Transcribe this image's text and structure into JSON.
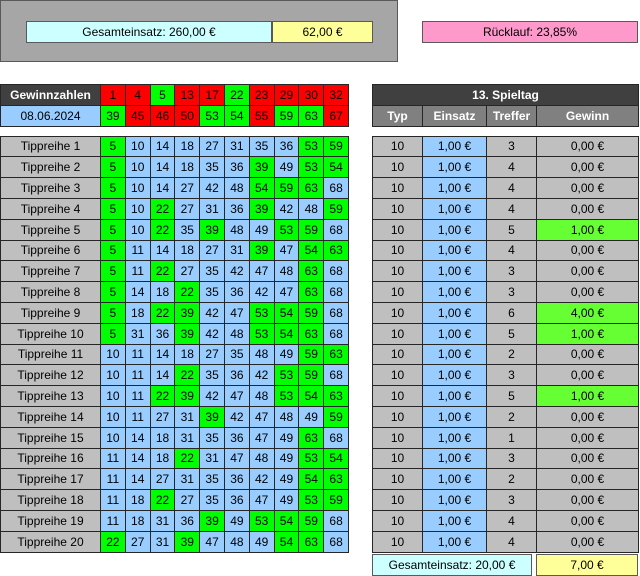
{
  "summary": {
    "gesamteinsatz_label": "Gesamteinsatz: 260,00 €",
    "gesamteinsatz_value": "62,00 €",
    "ruecklauf": "Rücklauf: 23,85%"
  },
  "winning": {
    "label": "Gewinnzahlen",
    "date": "08.06.2024",
    "top": [
      "1",
      "4",
      "5",
      "13",
      "17",
      "22",
      "23",
      "29",
      "30",
      "32"
    ],
    "bottom": [
      "39",
      "45",
      "46",
      "50",
      "53",
      "54",
      "55",
      "59",
      "63",
      "67"
    ],
    "top_colors": [
      "red",
      "red",
      "green",
      "red",
      "red",
      "green",
      "red",
      "red",
      "red",
      "red"
    ],
    "bottom_colors": [
      "green",
      "red",
      "red",
      "red",
      "green",
      "green",
      "red",
      "green",
      "green",
      "red"
    ]
  },
  "spieltag": {
    "title": "13. Spieltag",
    "headers": [
      "Typ",
      "Einsatz",
      "Treffer",
      "Gewinn"
    ]
  },
  "rows": [
    {
      "label": "Tippreihe 1",
      "nums": [
        "5",
        "10",
        "14",
        "18",
        "27",
        "31",
        "35",
        "36",
        "53",
        "59"
      ],
      "hits": [
        1,
        0,
        0,
        0,
        0,
        0,
        0,
        0,
        1,
        1
      ],
      "typ": "10",
      "einsatz": "1,00 €",
      "treffer": "3",
      "gewinn": "0,00 €",
      "win": false
    },
    {
      "label": "Tippreihe 2",
      "nums": [
        "5",
        "10",
        "14",
        "18",
        "35",
        "36",
        "39",
        "49",
        "53",
        "54"
      ],
      "hits": [
        1,
        0,
        0,
        0,
        0,
        0,
        1,
        0,
        1,
        1
      ],
      "typ": "10",
      "einsatz": "1,00 €",
      "treffer": "4",
      "gewinn": "0,00 €",
      "win": false
    },
    {
      "label": "Tippreihe 3",
      "nums": [
        "5",
        "10",
        "14",
        "27",
        "42",
        "48",
        "54",
        "59",
        "63",
        "68"
      ],
      "hits": [
        1,
        0,
        0,
        0,
        0,
        0,
        1,
        1,
        1,
        0
      ],
      "typ": "10",
      "einsatz": "1,00 €",
      "treffer": "4",
      "gewinn": "0,00 €",
      "win": false
    },
    {
      "label": "Tippreihe 4",
      "nums": [
        "5",
        "10",
        "22",
        "27",
        "31",
        "36",
        "39",
        "42",
        "48",
        "59"
      ],
      "hits": [
        1,
        0,
        1,
        0,
        0,
        0,
        1,
        0,
        0,
        1
      ],
      "typ": "10",
      "einsatz": "1,00 €",
      "treffer": "4",
      "gewinn": "0,00 €",
      "win": false
    },
    {
      "label": "Tippreihe 5",
      "nums": [
        "5",
        "10",
        "22",
        "35",
        "39",
        "48",
        "49",
        "53",
        "59",
        "68"
      ],
      "hits": [
        1,
        0,
        1,
        0,
        1,
        0,
        0,
        1,
        1,
        0
      ],
      "typ": "10",
      "einsatz": "1,00 €",
      "treffer": "5",
      "gewinn": "1,00 €",
      "win": true
    },
    {
      "label": "Tippreihe 6",
      "nums": [
        "5",
        "11",
        "14",
        "18",
        "27",
        "31",
        "39",
        "47",
        "54",
        "63"
      ],
      "hits": [
        1,
        0,
        0,
        0,
        0,
        0,
        1,
        0,
        1,
        1
      ],
      "typ": "10",
      "einsatz": "1,00 €",
      "treffer": "4",
      "gewinn": "0,00 €",
      "win": false
    },
    {
      "label": "Tippreihe 7",
      "nums": [
        "5",
        "11",
        "22",
        "27",
        "35",
        "42",
        "47",
        "48",
        "63",
        "68"
      ],
      "hits": [
        1,
        0,
        1,
        0,
        0,
        0,
        0,
        0,
        1,
        0
      ],
      "typ": "10",
      "einsatz": "1,00 €",
      "treffer": "3",
      "gewinn": "0,00 €",
      "win": false
    },
    {
      "label": "Tippreihe 8",
      "nums": [
        "5",
        "14",
        "18",
        "22",
        "35",
        "36",
        "42",
        "47",
        "63",
        "68"
      ],
      "hits": [
        1,
        0,
        0,
        1,
        0,
        0,
        0,
        0,
        1,
        0
      ],
      "typ": "10",
      "einsatz": "1,00 €",
      "treffer": "3",
      "gewinn": "0,00 €",
      "win": false
    },
    {
      "label": "Tippreihe 9",
      "nums": [
        "5",
        "18",
        "22",
        "39",
        "42",
        "47",
        "53",
        "54",
        "59",
        "68"
      ],
      "hits": [
        1,
        0,
        1,
        1,
        0,
        0,
        1,
        1,
        1,
        0
      ],
      "typ": "10",
      "einsatz": "1,00 €",
      "treffer": "6",
      "gewinn": "4,00 €",
      "win": true
    },
    {
      "label": "Tippreihe 10",
      "nums": [
        "5",
        "31",
        "36",
        "39",
        "42",
        "48",
        "53",
        "54",
        "63",
        "68"
      ],
      "hits": [
        1,
        0,
        0,
        1,
        0,
        0,
        1,
        1,
        1,
        0
      ],
      "typ": "10",
      "einsatz": "1,00 €",
      "treffer": "5",
      "gewinn": "1,00 €",
      "win": true
    },
    {
      "label": "Tippreihe 11",
      "nums": [
        "10",
        "11",
        "14",
        "18",
        "27",
        "35",
        "48",
        "49",
        "59",
        "63"
      ],
      "hits": [
        0,
        0,
        0,
        0,
        0,
        0,
        0,
        0,
        1,
        1
      ],
      "typ": "10",
      "einsatz": "1,00 €",
      "treffer": "2",
      "gewinn": "0,00 €",
      "win": false
    },
    {
      "label": "Tippreihe 12",
      "nums": [
        "10",
        "11",
        "14",
        "22",
        "35",
        "36",
        "42",
        "53",
        "59",
        "68"
      ],
      "hits": [
        0,
        0,
        0,
        1,
        0,
        0,
        0,
        1,
        1,
        0
      ],
      "typ": "10",
      "einsatz": "1,00 €",
      "treffer": "3",
      "gewinn": "0,00 €",
      "win": false
    },
    {
      "label": "Tippreihe 13",
      "nums": [
        "10",
        "11",
        "22",
        "39",
        "42",
        "47",
        "48",
        "53",
        "54",
        "63"
      ],
      "hits": [
        0,
        0,
        1,
        1,
        0,
        0,
        0,
        1,
        1,
        1
      ],
      "typ": "10",
      "einsatz": "1,00 €",
      "treffer": "5",
      "gewinn": "1,00 €",
      "win": true
    },
    {
      "label": "Tippreihe 14",
      "nums": [
        "10",
        "11",
        "27",
        "31",
        "39",
        "42",
        "47",
        "48",
        "49",
        "59"
      ],
      "hits": [
        0,
        0,
        0,
        0,
        1,
        0,
        0,
        0,
        0,
        1
      ],
      "typ": "10",
      "einsatz": "1,00 €",
      "treffer": "2",
      "gewinn": "0,00 €",
      "win": false
    },
    {
      "label": "Tippreihe 15",
      "nums": [
        "10",
        "14",
        "18",
        "31",
        "35",
        "36",
        "47",
        "49",
        "63",
        "68"
      ],
      "hits": [
        0,
        0,
        0,
        0,
        0,
        0,
        0,
        0,
        1,
        0
      ],
      "typ": "10",
      "einsatz": "1,00 €",
      "treffer": "1",
      "gewinn": "0,00 €",
      "win": false
    },
    {
      "label": "Tippreihe 16",
      "nums": [
        "11",
        "14",
        "18",
        "22",
        "31",
        "47",
        "48",
        "49",
        "53",
        "54"
      ],
      "hits": [
        0,
        0,
        0,
        1,
        0,
        0,
        0,
        0,
        1,
        1
      ],
      "typ": "10",
      "einsatz": "1,00 €",
      "treffer": "3",
      "gewinn": "0,00 €",
      "win": false
    },
    {
      "label": "Tippreihe 17",
      "nums": [
        "11",
        "14",
        "27",
        "31",
        "35",
        "36",
        "42",
        "49",
        "54",
        "63"
      ],
      "hits": [
        0,
        0,
        0,
        0,
        0,
        0,
        0,
        0,
        1,
        1
      ],
      "typ": "10",
      "einsatz": "1,00 €",
      "treffer": "2",
      "gewinn": "0,00 €",
      "win": false
    },
    {
      "label": "Tippreihe 18",
      "nums": [
        "11",
        "18",
        "22",
        "27",
        "35",
        "36",
        "47",
        "49",
        "53",
        "59"
      ],
      "hits": [
        0,
        0,
        1,
        0,
        0,
        0,
        0,
        0,
        1,
        1
      ],
      "typ": "10",
      "einsatz": "1,00 €",
      "treffer": "3",
      "gewinn": "0,00 €",
      "win": false
    },
    {
      "label": "Tippreihe 19",
      "nums": [
        "11",
        "18",
        "31",
        "36",
        "39",
        "49",
        "53",
        "54",
        "59",
        "68"
      ],
      "hits": [
        0,
        0,
        0,
        0,
        1,
        0,
        1,
        1,
        1,
        0
      ],
      "typ": "10",
      "einsatz": "1,00 €",
      "treffer": "4",
      "gewinn": "0,00 €",
      "win": false
    },
    {
      "label": "Tippreihe 20",
      "nums": [
        "22",
        "27",
        "31",
        "39",
        "47",
        "48",
        "49",
        "54",
        "63",
        "68"
      ],
      "hits": [
        1,
        0,
        0,
        1,
        0,
        0,
        0,
        1,
        1,
        0
      ],
      "typ": "10",
      "einsatz": "1,00 €",
      "treffer": "4",
      "gewinn": "0,00 €",
      "win": false
    }
  ],
  "footer": {
    "gesamteinsatz_label": "Gesamteinsatz: 20,00 €",
    "gesamteinsatz_value": "7,00 €"
  }
}
